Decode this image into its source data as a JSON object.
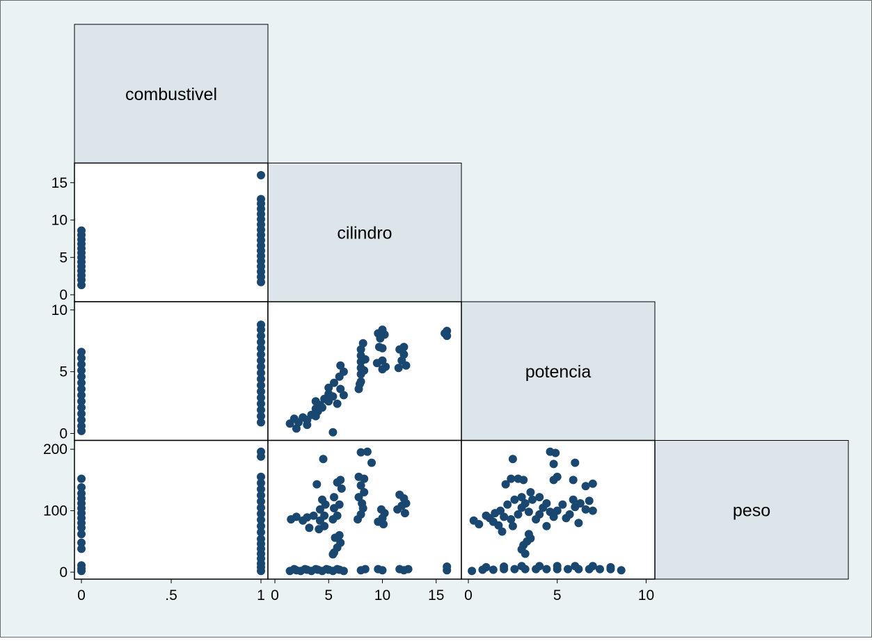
{
  "chart_data": {
    "type": "scatter",
    "subtype": "scatter-matrix-lower-half",
    "colors": {
      "background": "#eaf2f3",
      "diagonal_fill": "#dce6ea",
      "panel_fill": "#ffffff",
      "marker": "#1a476f",
      "frame": "#000000"
    },
    "grid": false,
    "legend": "none",
    "variables": [
      {
        "name": "combustivel",
        "range": [
          0,
          1
        ],
        "ticks": [
          0,
          0.5,
          1
        ],
        "tick_labels": [
          "0",
          ".5",
          "1"
        ]
      },
      {
        "name": "cilindro",
        "range": [
          0,
          16.7
        ],
        "ticks": [
          0,
          5,
          10,
          15
        ],
        "tick_labels": [
          "0",
          "5",
          "10",
          "15"
        ]
      },
      {
        "name": "potencia",
        "range": [
          0,
          10.1
        ],
        "ticks": [
          0,
          5,
          10
        ],
        "tick_labels": [
          "0",
          "5",
          "10"
        ]
      },
      {
        "name": "peso",
        "range": [
          0,
          203
        ],
        "ticks": [
          0,
          100,
          200
        ],
        "tick_labels": [
          "0",
          "100",
          "200"
        ]
      }
    ],
    "panels": [
      {
        "x": "combustivel",
        "y": "cilindro",
        "points": [
          [
            0,
            1.3
          ],
          [
            0,
            2
          ],
          [
            0,
            2.6
          ],
          [
            0,
            3.2
          ],
          [
            0,
            3.8
          ],
          [
            0,
            4.4
          ],
          [
            0,
            5
          ],
          [
            0,
            5.6
          ],
          [
            0,
            6.2
          ],
          [
            0,
            6.8
          ],
          [
            0,
            7.4
          ],
          [
            0,
            8
          ],
          [
            0,
            8.6
          ],
          [
            1,
            1.7
          ],
          [
            1,
            2.4
          ],
          [
            1,
            3.1
          ],
          [
            1,
            3.8
          ],
          [
            1,
            4.5
          ],
          [
            1,
            5.2
          ],
          [
            1,
            5.9
          ],
          [
            1,
            6.6
          ],
          [
            1,
            7.3
          ],
          [
            1,
            8
          ],
          [
            1,
            8.7
          ],
          [
            1,
            9.4
          ],
          [
            1,
            10.1
          ],
          [
            1,
            10.8
          ],
          [
            1,
            11.5
          ],
          [
            1,
            12.2
          ],
          [
            1,
            12.8
          ],
          [
            1,
            16
          ]
        ]
      },
      {
        "x": "combustivel",
        "y": "potencia",
        "points": [
          [
            0,
            0.2
          ],
          [
            0,
            0.6
          ],
          [
            0,
            1.1
          ],
          [
            0,
            1.6
          ],
          [
            0,
            2.1
          ],
          [
            0,
            2.6
          ],
          [
            0,
            3.1
          ],
          [
            0,
            3.6
          ],
          [
            0,
            4.1
          ],
          [
            0,
            4.6
          ],
          [
            0,
            5.1
          ],
          [
            0,
            5.6
          ],
          [
            0,
            6.1
          ],
          [
            0,
            6.6
          ],
          [
            1,
            0.9
          ],
          [
            1,
            1.4
          ],
          [
            1,
            1.9
          ],
          [
            1,
            2.4
          ],
          [
            1,
            2.9
          ],
          [
            1,
            3.4
          ],
          [
            1,
            3.9
          ],
          [
            1,
            4.4
          ],
          [
            1,
            4.9
          ],
          [
            1,
            5.4
          ],
          [
            1,
            5.9
          ],
          [
            1,
            6.4
          ],
          [
            1,
            6.9
          ],
          [
            1,
            7.4
          ],
          [
            1,
            7.9
          ],
          [
            1,
            8.4
          ],
          [
            1,
            8.8
          ]
        ]
      },
      {
        "x": "combustivel",
        "y": "peso",
        "points": [
          [
            0,
            2
          ],
          [
            0,
            6
          ],
          [
            0,
            11
          ],
          [
            0,
            38
          ],
          [
            0,
            48
          ],
          [
            0,
            62
          ],
          [
            0,
            72
          ],
          [
            0,
            80
          ],
          [
            0,
            88
          ],
          [
            0,
            96
          ],
          [
            0,
            104
          ],
          [
            0,
            112
          ],
          [
            0,
            120
          ],
          [
            0,
            128
          ],
          [
            0,
            138
          ],
          [
            0,
            152
          ],
          [
            1,
            2
          ],
          [
            1,
            8
          ],
          [
            1,
            14
          ],
          [
            1,
            22
          ],
          [
            1,
            30
          ],
          [
            1,
            38
          ],
          [
            1,
            46
          ],
          [
            1,
            54
          ],
          [
            1,
            65
          ],
          [
            1,
            75
          ],
          [
            1,
            85
          ],
          [
            1,
            95
          ],
          [
            1,
            105
          ],
          [
            1,
            115
          ],
          [
            1,
            125
          ],
          [
            1,
            135
          ],
          [
            1,
            145
          ],
          [
            1,
            155
          ],
          [
            1,
            188
          ],
          [
            1,
            196
          ]
        ]
      },
      {
        "x": "cilindro",
        "y": "potencia",
        "points": [
          [
            1.4,
            0.8
          ],
          [
            1.8,
            1.2
          ],
          [
            2.2,
            0.9
          ],
          [
            2.6,
            1.3
          ],
          [
            3,
            1.1
          ],
          [
            3.4,
            1.5
          ],
          [
            3,
            0.7
          ],
          [
            2,
            0.4
          ],
          [
            3.8,
            1.4
          ],
          [
            4,
            1.8
          ],
          [
            4.2,
            2.3
          ],
          [
            4.6,
            2.8
          ],
          [
            4.4,
            2.1
          ],
          [
            3.8,
            2.6
          ],
          [
            3.8,
            2
          ],
          [
            5,
            2.6
          ],
          [
            5,
            3.2
          ],
          [
            5,
            3.7
          ],
          [
            5.4,
            3
          ],
          [
            5.5,
            4.1
          ],
          [
            5.8,
            2.4
          ],
          [
            6,
            4.6
          ],
          [
            6.1,
            5.5
          ],
          [
            6.1,
            3.6
          ],
          [
            6.4,
            3.1
          ],
          [
            6.4,
            5
          ],
          [
            5.4,
            0.1
          ],
          [
            7.8,
            3.6
          ],
          [
            8,
            4.2
          ],
          [
            8,
            4.8
          ],
          [
            8,
            5.3
          ],
          [
            8,
            5.8
          ],
          [
            8,
            6.3
          ],
          [
            8,
            6.8
          ],
          [
            8.2,
            7.3
          ],
          [
            7.9,
            4
          ],
          [
            8.3,
            5.1
          ],
          [
            8.4,
            6
          ],
          [
            9.5,
            5.7
          ],
          [
            10,
            5.2
          ],
          [
            10,
            5.9
          ],
          [
            10.3,
            5.4
          ],
          [
            9.7,
            7
          ],
          [
            10,
            6.9
          ],
          [
            9.6,
            8.1
          ],
          [
            10,
            8.4
          ],
          [
            10.2,
            8
          ],
          [
            9.8,
            7.7
          ],
          [
            11.5,
            5.3
          ],
          [
            11.8,
            5.9
          ],
          [
            12,
            6.4
          ],
          [
            12.2,
            5.5
          ],
          [
            11.6,
            6.8
          ],
          [
            12,
            7
          ],
          [
            16,
            7.9
          ],
          [
            16,
            8.3
          ],
          [
            15.8,
            8.1
          ]
        ]
      },
      {
        "x": "cilindro",
        "y": "peso",
        "points": [
          [
            1.4,
            2
          ],
          [
            2.4,
            2
          ],
          [
            3.4,
            2
          ],
          [
            4.4,
            2
          ],
          [
            5.4,
            2
          ],
          [
            6.4,
            2
          ],
          [
            2,
            3
          ],
          [
            3,
            4
          ],
          [
            4,
            4
          ],
          [
            5,
            4
          ],
          [
            6,
            4
          ],
          [
            1.8,
            5
          ],
          [
            2.8,
            5
          ],
          [
            3.8,
            5
          ],
          [
            4.8,
            5
          ],
          [
            5.8,
            5
          ],
          [
            8,
            3
          ],
          [
            10,
            3
          ],
          [
            12,
            3
          ],
          [
            8.4,
            5
          ],
          [
            9.6,
            5
          ],
          [
            11.6,
            5
          ],
          [
            12.4,
            5
          ],
          [
            16,
            3
          ],
          [
            16,
            9
          ],
          [
            1.5,
            86
          ],
          [
            2,
            90
          ],
          [
            2.6,
            84
          ],
          [
            3,
            89
          ],
          [
            3.6,
            92
          ],
          [
            3.2,
            72
          ],
          [
            4.2,
            84
          ],
          [
            4.6,
            92
          ],
          [
            4.2,
            102
          ],
          [
            4.7,
            110
          ],
          [
            4.4,
            118
          ],
          [
            4.1,
            70
          ],
          [
            4.6,
            75
          ],
          [
            3.9,
            143
          ],
          [
            4.5,
            184
          ],
          [
            5.4,
            86
          ],
          [
            5.8,
            92
          ],
          [
            5.5,
            104
          ],
          [
            6,
            110
          ],
          [
            5.5,
            122
          ],
          [
            6.2,
            136
          ],
          [
            5.8,
            146
          ],
          [
            6.1,
            150
          ],
          [
            5.5,
            32
          ],
          [
            5.8,
            40
          ],
          [
            6.1,
            48
          ],
          [
            5.6,
            56
          ],
          [
            6,
            60
          ],
          [
            5.4,
            29
          ],
          [
            7.7,
            86
          ],
          [
            8,
            94
          ],
          [
            8.2,
            104
          ],
          [
            8.1,
            112
          ],
          [
            7.8,
            122
          ],
          [
            8.3,
            130
          ],
          [
            8,
            141
          ],
          [
            8.3,
            152
          ],
          [
            7.8,
            155
          ],
          [
            8,
            195
          ],
          [
            8.6,
            196
          ],
          [
            9,
            178
          ],
          [
            9.6,
            82
          ],
          [
            10,
            88
          ],
          [
            10.2,
            96
          ],
          [
            9.9,
            102
          ],
          [
            10.1,
            78
          ],
          [
            11.4,
            102
          ],
          [
            11.8,
            108
          ],
          [
            12.2,
            112
          ],
          [
            12,
            120
          ],
          [
            11.6,
            126
          ],
          [
            12.1,
            96
          ]
        ]
      },
      {
        "x": "potencia",
        "y": "peso",
        "points": [
          [
            0.2,
            2
          ],
          [
            0.8,
            4
          ],
          [
            1.4,
            4
          ],
          [
            2,
            5
          ],
          [
            2.6,
            5
          ],
          [
            3.2,
            5
          ],
          [
            3.8,
            5
          ],
          [
            4.4,
            5
          ],
          [
            5,
            5
          ],
          [
            5.6,
            5
          ],
          [
            6.2,
            5
          ],
          [
            6.8,
            5
          ],
          [
            7.4,
            5
          ],
          [
            8,
            5
          ],
          [
            8.6,
            3
          ],
          [
            1,
            8
          ],
          [
            2,
            9
          ],
          [
            3,
            10
          ],
          [
            4,
            10
          ],
          [
            5,
            10
          ],
          [
            6,
            10
          ],
          [
            7,
            10
          ],
          [
            8,
            8
          ],
          [
            0.3,
            84
          ],
          [
            0.6,
            78
          ],
          [
            1,
            92
          ],
          [
            1.2,
            88
          ],
          [
            1.5,
            96
          ],
          [
            1.4,
            82
          ],
          [
            1.8,
            100
          ],
          [
            2,
            90
          ],
          [
            2.2,
            110
          ],
          [
            1.7,
            76
          ],
          [
            1.9,
            66
          ],
          [
            2.4,
            86
          ],
          [
            2.8,
            94
          ],
          [
            3,
            105
          ],
          [
            3.2,
            112
          ],
          [
            3.4,
            98
          ],
          [
            2.6,
            118
          ],
          [
            3,
            122
          ],
          [
            2.5,
            75
          ],
          [
            3.8,
            86
          ],
          [
            4,
            94
          ],
          [
            4.2,
            105
          ],
          [
            4.4,
            112
          ],
          [
            4.6,
            98
          ],
          [
            3.6,
            118
          ],
          [
            4,
            122
          ],
          [
            4.4,
            75
          ],
          [
            4.8,
            90
          ],
          [
            5,
            100
          ],
          [
            5.3,
            110
          ],
          [
            5.5,
            88
          ],
          [
            5.7,
            94
          ],
          [
            5.9,
            118
          ],
          [
            6,
            106
          ],
          [
            6.2,
            80
          ],
          [
            6.3,
            112
          ],
          [
            6.6,
            102
          ],
          [
            6.8,
            116
          ],
          [
            7,
            100
          ],
          [
            6.6,
            140
          ],
          [
            7,
            144
          ],
          [
            2.1,
            143
          ],
          [
            2.4,
            152
          ],
          [
            2.8,
            152
          ],
          [
            3.1,
            150
          ],
          [
            3.5,
            130
          ],
          [
            4.8,
            150
          ],
          [
            5,
            155
          ],
          [
            5.9,
            150
          ],
          [
            3.4,
            62
          ],
          [
            3.3,
            50
          ],
          [
            3.1,
            44
          ],
          [
            3,
            37
          ],
          [
            3.2,
            30
          ],
          [
            3.5,
            55
          ],
          [
            2.5,
            184
          ],
          [
            4.6,
            196
          ],
          [
            4.9,
            194
          ],
          [
            6,
            178
          ],
          [
            4.8,
            176
          ]
        ]
      }
    ]
  }
}
